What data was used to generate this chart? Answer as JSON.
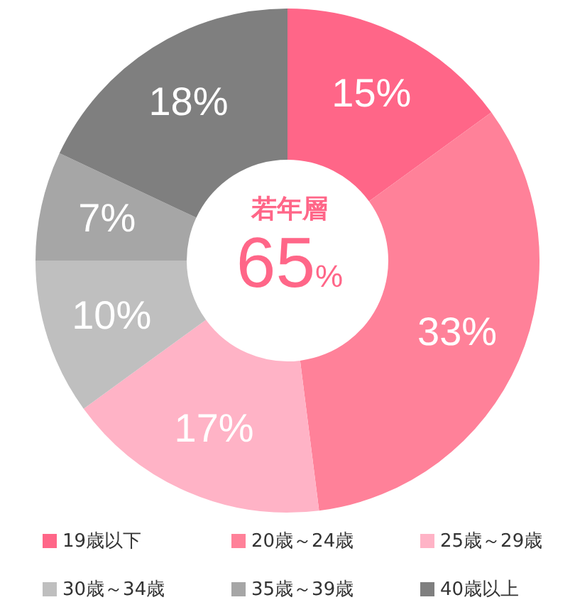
{
  "chart_data": {
    "type": "donut",
    "categories": [
      "19歳以下",
      "20歳～24歳",
      "25歳～29歳",
      "30歳～34歳",
      "35歳～39歳",
      "40歳以上"
    ],
    "values": [
      15,
      33,
      17,
      10,
      7,
      18
    ],
    "value_labels": [
      "15%",
      "33%",
      "17%",
      "10%",
      "7%",
      "18%"
    ],
    "colors": [
      "#ff6688",
      "#ff8199",
      "#ffb3c6",
      "#bfbfbf",
      "#a6a6a6",
      "#7f7f7f"
    ],
    "annotations": [
      "若年層",
      "65%"
    ],
    "legend": "bottom"
  }
}
